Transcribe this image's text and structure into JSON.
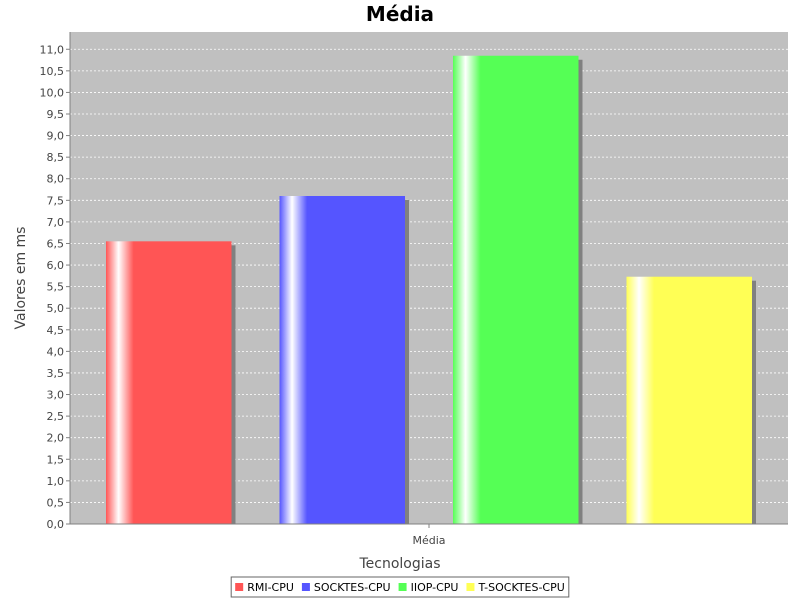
{
  "chart_data": {
    "type": "bar",
    "title": "Média",
    "xlabel": "Tecnologias",
    "ylabel": "Valores em ms",
    "categories": [
      "Média"
    ],
    "ylim": [
      0,
      11.4
    ],
    "ytick_step": 0.5,
    "y_decimal_separator": ",",
    "grid": true,
    "legend_position": "bottom",
    "series": [
      {
        "name": "RMI-CPU",
        "values": [
          6.55
        ],
        "color": "#ff5555"
      },
      {
        "name": "SOCKTES-CPU",
        "values": [
          7.6
        ],
        "color": "#5555ff"
      },
      {
        "name": "IIOP-CPU",
        "values": [
          10.85
        ],
        "color": "#55ff55"
      },
      {
        "name": "T-SOCKTES-CPU",
        "values": [
          5.73
        ],
        "color": "#ffff55"
      }
    ]
  },
  "colors": {
    "plot_background": "#c0c0c0",
    "gridline": "#ffffff",
    "shadow": "#808080"
  }
}
